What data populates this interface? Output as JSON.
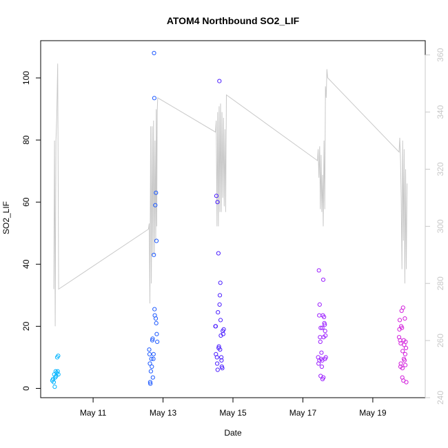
{
  "chart_data": {
    "type": "scatter",
    "title": "ATOM4 Northbound SO2_LIF",
    "xlabel": "Date",
    "ylabel": "SO2_LIF",
    "x_axis": {
      "type": "date",
      "range": [
        "2023-05-09T12:00",
        "2023-05-20T12:00"
      ],
      "ticks": [
        {
          "value": "2023-05-11",
          "label": "May 11"
        },
        {
          "value": "2023-05-13",
          "label": "May 13"
        },
        {
          "value": "2023-05-15",
          "label": "May 15"
        },
        {
          "value": "2023-05-17",
          "label": "May 17"
        },
        {
          "value": "2023-05-19",
          "label": "May 19"
        }
      ]
    },
    "y_axis_left": {
      "range": [
        -3,
        112
      ],
      "ticks": [
        0,
        20,
        40,
        60,
        80,
        100
      ]
    },
    "y_axis_right": {
      "range": [
        240,
        365
      ],
      "ticks": [
        240,
        260,
        280,
        300,
        320,
        340,
        360
      ],
      "color": "#c8c8c8"
    },
    "grid": false,
    "line_series": {
      "axis": "right",
      "color": "#c8c8c8",
      "points": [
        [
          "2023-05-09T21:00",
          278
        ],
        [
          "2023-05-09T21:30",
          330
        ],
        [
          "2023-05-09T22:00",
          265
        ],
        [
          "2023-05-09T22:30",
          330
        ],
        [
          "2023-05-09T23:00",
          338
        ],
        [
          "2023-05-09T23:40",
          357
        ],
        [
          "2023-05-10T00:20",
          278
        ],
        [
          "2023-05-12T14:00",
          299
        ],
        [
          "2023-05-12T14:30",
          301
        ],
        [
          "2023-05-12T15:00",
          273
        ],
        [
          "2023-05-12T15:30",
          335
        ],
        [
          "2023-05-12T16:00",
          280
        ],
        [
          "2023-05-12T16:30",
          335
        ],
        [
          "2023-05-12T17:00",
          290
        ],
        [
          "2023-05-12T17:30",
          337
        ],
        [
          "2023-05-12T18:00",
          290
        ],
        [
          "2023-05-12T18:30",
          330
        ],
        [
          "2023-05-12T19:00",
          295
        ],
        [
          "2023-05-12T19:20",
          341
        ],
        [
          "2023-05-12T19:40",
          300
        ],
        [
          "2023-05-12T20:00",
          340
        ],
        [
          "2023-05-12T20:20",
          345
        ],
        [
          "2023-05-14T12:00",
          333
        ],
        [
          "2023-05-14T12:30",
          337
        ],
        [
          "2023-05-14T13:00",
          300
        ],
        [
          "2023-05-14T13:30",
          340
        ],
        [
          "2023-05-14T14:00",
          300
        ],
        [
          "2023-05-14T14:30",
          342
        ],
        [
          "2023-05-14T15:00",
          305
        ],
        [
          "2023-05-14T15:30",
          343
        ],
        [
          "2023-05-14T16:00",
          305
        ],
        [
          "2023-05-14T16:30",
          340
        ],
        [
          "2023-05-14T17:00",
          310
        ],
        [
          "2023-05-14T17:30",
          338
        ],
        [
          "2023-05-14T18:00",
          307
        ],
        [
          "2023-05-14T18:30",
          334
        ],
        [
          "2023-05-14T19:00",
          305
        ],
        [
          "2023-05-14T19:30",
          346
        ],
        [
          "2023-05-17T10:00",
          323
        ],
        [
          "2023-05-17T10:30",
          327
        ],
        [
          "2023-05-17T11:00",
          317
        ],
        [
          "2023-05-17T11:30",
          328
        ],
        [
          "2023-05-17T12:00",
          306
        ],
        [
          "2023-05-17T12:30",
          325
        ],
        [
          "2023-05-17T13:00",
          305
        ],
        [
          "2023-05-17T13:30",
          318
        ],
        [
          "2023-05-17T14:00",
          300
        ],
        [
          "2023-05-17T14:30",
          330
        ],
        [
          "2023-05-17T15:00",
          306
        ],
        [
          "2023-05-17T15:30",
          349
        ],
        [
          "2023-05-17T16:00",
          345
        ],
        [
          "2023-05-17T16:30",
          355
        ],
        [
          "2023-05-17T17:00",
          352
        ],
        [
          "2023-05-19T18:00",
          326
        ],
        [
          "2023-05-19T18:30",
          331
        ],
        [
          "2023-05-19T19:00",
          323
        ],
        [
          "2023-05-19T19:30",
          310
        ],
        [
          "2023-05-19T20:00",
          285
        ],
        [
          "2023-05-19T20:30",
          330
        ],
        [
          "2023-05-19T21:00",
          295
        ],
        [
          "2023-05-19T21:30",
          327
        ],
        [
          "2023-05-19T22:00",
          280
        ],
        [
          "2023-05-19T22:30",
          320
        ],
        [
          "2023-05-19T23:00",
          285
        ],
        [
          "2023-05-19T23:30",
          315
        ]
      ]
    },
    "point_series": [
      {
        "color": "#00b4ff",
        "points": [
          [
            "2023-05-09T20:00",
            2.5
          ],
          [
            "2023-05-09T20:30",
            3.0
          ],
          [
            "2023-05-09T21:00",
            2.0
          ],
          [
            "2023-05-09T21:20",
            4.5
          ],
          [
            "2023-05-09T21:40",
            0.5
          ],
          [
            "2023-05-09T22:00",
            3.5
          ],
          [
            "2023-05-09T22:20",
            5.5
          ],
          [
            "2023-05-09T22:40",
            4.0
          ],
          [
            "2023-05-09T23:00",
            5.0
          ],
          [
            "2023-05-09T23:20",
            10.0
          ],
          [
            "2023-05-09T23:40",
            5.5
          ],
          [
            "2023-05-10T00:00",
            10.5
          ],
          [
            "2023-05-10T00:10",
            4.5
          ]
        ]
      },
      {
        "color": "#1e5aff",
        "points": [
          [
            "2023-05-12T14:30",
            12.5
          ],
          [
            "2023-05-12T14:45",
            11.0
          ],
          [
            "2023-05-12T15:00",
            8.0
          ],
          [
            "2023-05-12T15:20",
            1.5
          ],
          [
            "2023-05-12T15:40",
            5.5
          ],
          [
            "2023-05-12T16:00",
            9.5
          ],
          [
            "2023-05-12T16:20",
            7.0
          ],
          [
            "2023-05-12T16:40",
            15.5
          ],
          [
            "2023-05-12T17:00",
            3.5
          ],
          [
            "2023-05-12T17:20",
            9.5
          ],
          [
            "2023-05-12T17:40",
            43.0
          ],
          [
            "2023-05-12T17:50",
            108.0
          ],
          [
            "2023-05-12T18:00",
            93.5
          ],
          [
            "2023-05-12T18:10",
            25.5
          ],
          [
            "2023-05-12T18:20",
            23.5
          ],
          [
            "2023-05-12T18:40",
            59.0
          ],
          [
            "2023-05-12T19:00",
            22.5
          ],
          [
            "2023-05-12T19:10",
            63.0
          ],
          [
            "2023-05-12T19:20",
            21.0
          ],
          [
            "2023-05-12T19:30",
            47.5
          ],
          [
            "2023-05-12T19:40",
            17.5
          ],
          [
            "2023-05-12T20:00",
            15.0
          ],
          [
            "2023-05-12T16:50",
            16.0
          ],
          [
            "2023-05-12T15:10",
            2.0
          ],
          [
            "2023-05-12T17:30",
            11.0
          ]
        ]
      },
      {
        "color": "#4b1eff",
        "points": [
          [
            "2023-05-14T12:00",
            20.0
          ],
          [
            "2023-05-14T12:20",
            11.0
          ],
          [
            "2023-05-14T12:40",
            62.0
          ],
          [
            "2023-05-14T13:00",
            10.0
          ],
          [
            "2023-05-14T13:20",
            60.0
          ],
          [
            "2023-05-14T13:40",
            24.5
          ],
          [
            "2023-05-14T14:00",
            43.5
          ],
          [
            "2023-05-14T14:20",
            13.5
          ],
          [
            "2023-05-14T14:40",
            99.0
          ],
          [
            "2023-05-14T15:00",
            30.0
          ],
          [
            "2023-05-14T15:20",
            34.0
          ],
          [
            "2023-05-14T15:40",
            17.0
          ],
          [
            "2023-05-14T16:00",
            10.0
          ],
          [
            "2023-05-14T16:20",
            7.0
          ],
          [
            "2023-05-14T16:40",
            6.5
          ],
          [
            "2023-05-14T17:00",
            18.5
          ],
          [
            "2023-05-14T17:20",
            17.5
          ],
          [
            "2023-05-14T17:40",
            19.0
          ],
          [
            "2023-05-14T13:10",
            8.0
          ],
          [
            "2023-05-14T13:30",
            6.0
          ],
          [
            "2023-05-14T14:10",
            13.0
          ],
          [
            "2023-05-14T14:50",
            27.0
          ],
          [
            "2023-05-14T15:10",
            12.5
          ],
          [
            "2023-05-14T12:10",
            20.0
          ],
          [
            "2023-05-14T15:30",
            22.0
          ],
          [
            "2023-05-14T16:10",
            9.0
          ]
        ]
      },
      {
        "color": "#9b1eff",
        "points": [
          [
            "2023-05-17T10:30",
            10.0
          ],
          [
            "2023-05-17T10:45",
            8.0
          ],
          [
            "2023-05-17T11:00",
            38.0
          ],
          [
            "2023-05-17T11:15",
            23.5
          ],
          [
            "2023-05-17T11:30",
            27.0
          ],
          [
            "2023-05-17T11:45",
            16.5
          ],
          [
            "2023-05-17T12:00",
            15.0
          ],
          [
            "2023-05-17T12:15",
            19.5
          ],
          [
            "2023-05-17T12:30",
            9.5
          ],
          [
            "2023-05-17T12:45",
            11.5
          ],
          [
            "2023-05-17T13:00",
            7.0
          ],
          [
            "2023-05-17T13:15",
            9.0
          ],
          [
            "2023-05-17T13:30",
            3.0
          ],
          [
            "2023-05-17T13:45",
            23.5
          ],
          [
            "2023-05-17T14:00",
            35.0
          ],
          [
            "2023-05-17T14:15",
            16.5
          ],
          [
            "2023-05-17T14:30",
            23.0
          ],
          [
            "2023-05-17T14:45",
            21.0
          ],
          [
            "2023-05-17T15:00",
            20.5
          ],
          [
            "2023-05-17T15:15",
            18.5
          ],
          [
            "2023-05-17T15:30",
            17.0
          ],
          [
            "2023-05-17T15:45",
            10.0
          ],
          [
            "2023-05-17T11:20",
            9.0
          ],
          [
            "2023-05-17T12:10",
            4.0
          ],
          [
            "2023-05-17T14:05",
            3.5
          ],
          [
            "2023-05-17T13:20",
            19.5
          ],
          [
            "2023-05-17T15:10",
            9.5
          ]
        ]
      },
      {
        "color": "#d21edc",
        "points": [
          [
            "2023-05-19T18:00",
            16.5
          ],
          [
            "2023-05-19T18:15",
            19.0
          ],
          [
            "2023-05-19T18:30",
            22.0
          ],
          [
            "2023-05-19T18:45",
            15.5
          ],
          [
            "2023-05-19T19:00",
            7.0
          ],
          [
            "2023-05-19T19:15",
            8.0
          ],
          [
            "2023-05-19T19:30",
            20.0
          ],
          [
            "2023-05-19T19:45",
            25.0
          ],
          [
            "2023-05-19T20:00",
            19.5
          ],
          [
            "2023-05-19T20:15",
            3.5
          ],
          [
            "2023-05-19T20:30",
            12.0
          ],
          [
            "2023-05-19T20:45",
            26.0
          ],
          [
            "2023-05-19T21:00",
            2.5
          ],
          [
            "2023-05-19T21:15",
            15.5
          ],
          [
            "2023-05-19T21:30",
            14.0
          ],
          [
            "2023-05-19T21:45",
            9.0
          ],
          [
            "2023-05-19T22:00",
            22.5
          ],
          [
            "2023-05-19T22:15",
            11.0
          ],
          [
            "2023-05-19T22:30",
            15.0
          ],
          [
            "2023-05-19T22:45",
            13.0
          ],
          [
            "2023-05-19T23:00",
            2.0
          ],
          [
            "2023-05-19T19:10",
            14.5
          ],
          [
            "2023-05-19T20:20",
            6.5
          ],
          [
            "2023-05-19T21:20",
            9.5
          ],
          [
            "2023-05-19T22:20",
            7.5
          ]
        ]
      }
    ]
  }
}
